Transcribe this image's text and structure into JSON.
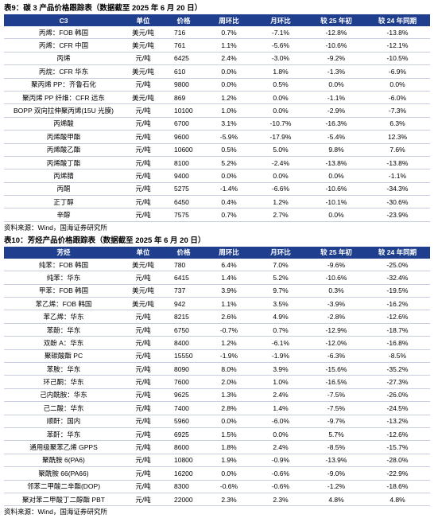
{
  "tables": [
    {
      "title": "表9：碳 3 产品价格跟踪表（数据截至 2025 年 6 月 20 日）",
      "header": [
        "C3",
        "单位",
        "价格",
        "周环比",
        "月环比",
        "较 25 年初",
        "较 24 年同期"
      ],
      "rows": [
        [
          "丙烯：FOB 韩国",
          "美元/吨",
          "716",
          "0.7%",
          "-7.1%",
          "-12.8%",
          "-13.8%"
        ],
        [
          "丙烯：CFR 中国",
          "美元/吨",
          "761",
          "1.1%",
          "-5.6%",
          "-10.6%",
          "-12.1%"
        ],
        [
          "丙烯",
          "元/吨",
          "6425",
          "2.4%",
          "-3.0%",
          "-9.2%",
          "-10.5%"
        ],
        [
          "丙烷：CFR 华东",
          "美元/吨",
          "610",
          "0.0%",
          "1.8%",
          "-1.3%",
          "-6.9%"
        ],
        [
          "聚丙烯 PP：齐鲁石化",
          "元/吨",
          "9800",
          "0.0%",
          "0.5%",
          "0.0%",
          "0.0%"
        ],
        [
          "聚丙烯 PP 纤维：CFR 远东",
          "美元/吨",
          "869",
          "1.2%",
          "0.0%",
          "-1.1%",
          "-6.0%"
        ],
        [
          "BOPP 双向拉伸聚丙烯(15U 光膜)",
          "元/吨",
          "10100",
          "1.0%",
          "0.0%",
          "-2.9%",
          "-7.3%"
        ],
        [
          "丙烯酸",
          "元/吨",
          "6700",
          "3.1%",
          "-10.7%",
          "-16.3%",
          "6.3%"
        ],
        [
          "丙烯酸甲酯",
          "元/吨",
          "9600",
          "-5.9%",
          "-17.9%",
          "-5.4%",
          "12.3%"
        ],
        [
          "丙烯酸乙酯",
          "元/吨",
          "10600",
          "0.5%",
          "5.0%",
          "9.8%",
          "7.6%"
        ],
        [
          "丙烯酸丁酯",
          "元/吨",
          "8100",
          "5.2%",
          "-2.4%",
          "-13.8%",
          "-13.8%"
        ],
        [
          "丙烯腈",
          "元/吨",
          "9400",
          "0.0%",
          "0.0%",
          "0.0%",
          "-1.1%"
        ],
        [
          "丙酮",
          "元/吨",
          "5275",
          "-1.4%",
          "-6.6%",
          "-10.6%",
          "-34.3%"
        ],
        [
          "正丁醇",
          "元/吨",
          "6450",
          "0.4%",
          "1.2%",
          "-10.1%",
          "-30.6%"
        ],
        [
          "辛醇",
          "元/吨",
          "7575",
          "0.7%",
          "2.7%",
          "0.0%",
          "-23.9%"
        ]
      ],
      "source": "资料来源：Wind，国海证券研究所"
    },
    {
      "title": "表10：芳烃产品价格跟踪表（数据截至 2025 年 6 月 20 日）",
      "header": [
        "芳烃",
        "单位",
        "价格",
        "周环比",
        "月环比",
        "较 25 年初",
        "较 24 年同期"
      ],
      "rows": [
        [
          "纯苯：FOB 韩国",
          "美元/吨",
          "780",
          "6.4%",
          "7.0%",
          "-9.6%",
          "-25.0%"
        ],
        [
          "纯苯：华东",
          "元/吨",
          "6415",
          "1.4%",
          "5.2%",
          "-10.6%",
          "-32.4%"
        ],
        [
          "甲苯：FOB 韩国",
          "美元/吨",
          "737",
          "3.9%",
          "9.7%",
          "0.3%",
          "-19.5%"
        ],
        [
          "苯乙烯：FOB 韩国",
          "美元/吨",
          "942",
          "1.1%",
          "3.5%",
          "-3.9%",
          "-16.2%"
        ],
        [
          "苯乙烯：华东",
          "元/吨",
          "8215",
          "2.6%",
          "4.9%",
          "-2.8%",
          "-12.6%"
        ],
        [
          "苯酚：华东",
          "元/吨",
          "6750",
          "-0.7%",
          "0.7%",
          "-12.9%",
          "-18.7%"
        ],
        [
          "双酚 A：华东",
          "元/吨",
          "8400",
          "1.2%",
          "-6.1%",
          "-12.0%",
          "-16.8%"
        ],
        [
          "聚碳酸酯 PC",
          "元/吨",
          "15550",
          "-1.9%",
          "-1.9%",
          "-6.3%",
          "-8.5%"
        ],
        [
          "苯胺：华东",
          "元/吨",
          "8090",
          "8.0%",
          "3.9%",
          "-15.6%",
          "-35.2%"
        ],
        [
          "环己酮：华东",
          "元/吨",
          "7600",
          "2.0%",
          "1.0%",
          "-16.5%",
          "-27.3%"
        ],
        [
          "己内酰胺：华东",
          "元/吨",
          "9625",
          "1.3%",
          "2.4%",
          "-7.5%",
          "-26.0%"
        ],
        [
          "己二酸：华东",
          "元/吨",
          "7400",
          "2.8%",
          "1.4%",
          "-7.5%",
          "-24.5%"
        ],
        [
          "顺酐：国内",
          "元/吨",
          "5960",
          "0.0%",
          "-6.0%",
          "-9.7%",
          "-13.2%"
        ],
        [
          "苯酐：华东",
          "元/吨",
          "6925",
          "1.5%",
          "0.0%",
          "5.7%",
          "-12.6%"
        ],
        [
          "通用级聚苯乙烯 GPPS",
          "元/吨",
          "8600",
          "1.8%",
          "2.4%",
          "-8.5%",
          "-15.7%"
        ],
        [
          "聚酰胺 6(PA6)",
          "元/吨",
          "10800",
          "1.9%",
          "-0.9%",
          "-13.9%",
          "-28.0%"
        ],
        [
          "聚酰胺 66(PA66)",
          "元/吨",
          "16200",
          "0.0%",
          "-0.6%",
          "-9.0%",
          "-22.9%"
        ],
        [
          "邻苯二甲酸二辛酯(DOP)",
          "元/吨",
          "8300",
          "-0.6%",
          "-0.6%",
          "-1.2%",
          "-18.6%"
        ],
        [
          "聚对苯二甲酸丁二醇酯 PBT",
          "元/吨",
          "22000",
          "2.3%",
          "2.3%",
          "4.8%",
          "4.8%"
        ]
      ],
      "source": "资料来源：Wind，国海证券研究所"
    }
  ]
}
